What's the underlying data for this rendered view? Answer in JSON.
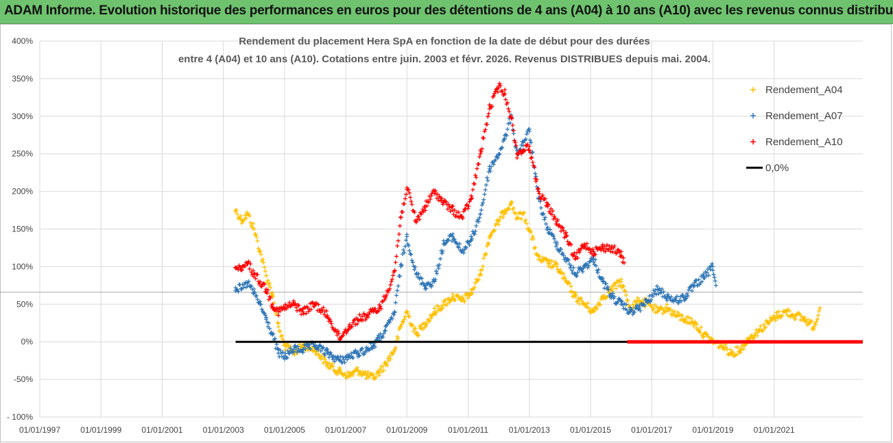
{
  "banner": {
    "text": "ADAM Informe. Evolution historique des performances en euros pour des détentions de 4 ans (A04) à 10 ans (A10) avec les revenus connus distribués"
  },
  "chart_data": {
    "type": "scatter",
    "title_line1": "Rendement du placement Hera SpA en fonction de la date de début pour des durées",
    "title_line2": "entre 4 (A04) et 10 ans (A10). Cotations entre juin. 2003 et févr. 2026. Revenus DISTRIBUES depuis mai. 2004.",
    "y_ticks": [
      "400%",
      "350%",
      "300%",
      "250%",
      "200%",
      "150%",
      "100%",
      "50%",
      "0%",
      "-50%",
      "- 100%"
    ],
    "ylim": [
      -100,
      400
    ],
    "x_ticks": [
      "01/01/1997",
      "01/01/1999",
      "01/01/2001",
      "01/01/2003",
      "01/01/2005",
      "01/01/2007",
      "01/01/2009",
      "01/01/2011",
      "01/01/2013",
      "01/01/2015",
      "01/01/2017",
      "01/01/2019",
      "01/01/2021"
    ],
    "xlim": [
      1997.0,
      2023.9
    ],
    "reference_line_value": 66,
    "series": [
      {
        "name": "Rendement_A04",
        "color": "#ffc000",
        "x": [
          2003.4,
          2003.6,
          2003.8,
          2004.0,
          2004.2,
          2004.4,
          2004.6,
          2004.8,
          2005.0,
          2005.3,
          2005.6,
          2006.0,
          2006.4,
          2006.8,
          2007.1,
          2007.4,
          2007.7,
          2007.9,
          2008.1,
          2008.3,
          2008.6,
          2008.8,
          2009.0,
          2009.3,
          2009.6,
          2009.9,
          2010.2,
          2010.5,
          2010.8,
          2011.1,
          2011.4,
          2011.7,
          2012.0,
          2012.2,
          2012.4,
          2012.6,
          2012.8,
          2013.0,
          2013.3,
          2013.6,
          2013.9,
          2014.2,
          2014.5,
          2014.8,
          2015.1,
          2015.4,
          2015.7,
          2016.0,
          2016.3,
          2016.6,
          2016.9,
          2017.2,
          2017.5,
          2017.8,
          2018.1,
          2018.4,
          2018.7,
          2019.0,
          2019.3,
          2019.6,
          2019.9,
          2020.2,
          2020.5,
          2020.8,
          2021.1,
          2021.4,
          2021.7,
          2022.0,
          2022.3,
          2022.5
        ],
        "y": [
          175,
          162,
          170,
          150,
          120,
          88,
          65,
          20,
          -5,
          -15,
          -5,
          -10,
          -30,
          -40,
          -45,
          -38,
          -45,
          -48,
          -40,
          -30,
          -10,
          20,
          40,
          10,
          25,
          40,
          50,
          60,
          55,
          65,
          90,
          140,
          160,
          175,
          185,
          165,
          170,
          150,
          110,
          105,
          100,
          80,
          60,
          50,
          40,
          60,
          70,
          80,
          45,
          55,
          50,
          40,
          45,
          35,
          30,
          25,
          10,
          0,
          -5,
          -15,
          -10,
          5,
          15,
          25,
          35,
          40,
          35,
          30,
          20,
          45
        ]
      },
      {
        "name": "Rendement_A07",
        "color": "#2e75b6",
        "x": [
          2003.4,
          2003.6,
          2003.8,
          2004.0,
          2004.2,
          2004.4,
          2004.6,
          2004.8,
          2005.0,
          2005.3,
          2005.6,
          2006.0,
          2006.4,
          2006.8,
          2007.1,
          2007.4,
          2007.7,
          2007.9,
          2008.1,
          2008.3,
          2008.6,
          2008.8,
          2009.0,
          2009.3,
          2009.6,
          2009.9,
          2010.2,
          2010.5,
          2010.8,
          2011.1,
          2011.4,
          2011.7,
          2012.0,
          2012.2,
          2012.4,
          2012.6,
          2012.8,
          2013.0,
          2013.3,
          2013.6,
          2013.9,
          2014.2,
          2014.5,
          2014.8,
          2015.1,
          2015.4,
          2015.7,
          2016.0,
          2016.3,
          2016.6,
          2016.9,
          2017.2,
          2017.5,
          2017.8,
          2018.1,
          2018.4,
          2018.7,
          2019.0,
          2019.1
        ],
        "y": [
          72,
          70,
          78,
          65,
          50,
          30,
          10,
          -15,
          -20,
          -10,
          -10,
          -5,
          -15,
          -25,
          -20,
          -15,
          -10,
          -5,
          5,
          15,
          40,
          100,
          140,
          90,
          75,
          80,
          130,
          140,
          120,
          135,
          170,
          230,
          250,
          270,
          300,
          250,
          265,
          280,
          190,
          150,
          130,
          110,
          90,
          100,
          110,
          80,
          60,
          50,
          40,
          45,
          55,
          70,
          60,
          55,
          60,
          75,
          85,
          100,
          75
        ]
      },
      {
        "name": "Rendement_A10",
        "color": "#ff0000",
        "x": [
          2003.4,
          2003.6,
          2003.8,
          2004.0,
          2004.2,
          2004.4,
          2004.6,
          2004.8,
          2005.0,
          2005.3,
          2005.6,
          2006.0,
          2006.4,
          2006.8,
          2007.1,
          2007.4,
          2007.7,
          2007.9,
          2008.1,
          2008.3,
          2008.6,
          2008.8,
          2009.0,
          2009.3,
          2009.6,
          2009.9,
          2010.2,
          2010.5,
          2010.8,
          2011.1,
          2011.4,
          2011.7,
          2012.0,
          2012.2,
          2012.4,
          2012.6,
          2012.8,
          2013.0,
          2013.3,
          2013.6,
          2013.9,
          2014.2,
          2014.5,
          2014.8,
          2015.1,
          2015.4,
          2015.7,
          2016.0,
          2016.1
        ],
        "y": [
          98,
          95,
          105,
          90,
          80,
          70,
          50,
          40,
          45,
          50,
          40,
          50,
          35,
          5,
          20,
          30,
          35,
          40,
          45,
          60,
          95,
          165,
          205,
          160,
          180,
          200,
          185,
          175,
          165,
          190,
          250,
          310,
          340,
          330,
          300,
          250,
          255,
          260,
          200,
          180,
          160,
          140,
          110,
          130,
          120,
          125,
          125,
          115,
          105
        ]
      },
      {
        "name": "0,0%",
        "color": "#000000",
        "x": [
          2003.4,
          2023.9
        ],
        "y": [
          0,
          0
        ]
      }
    ],
    "overlay_segment": {
      "name": "overlay-red",
      "color": "#ff0000",
      "x": [
        2016.2,
        2023.9
      ],
      "y": [
        0,
        0
      ]
    },
    "legend": {
      "position": "top-right",
      "entries": [
        "Rendement_A04",
        "Rendement_A07",
        "Rendement_A10",
        "0,0%"
      ]
    }
  }
}
